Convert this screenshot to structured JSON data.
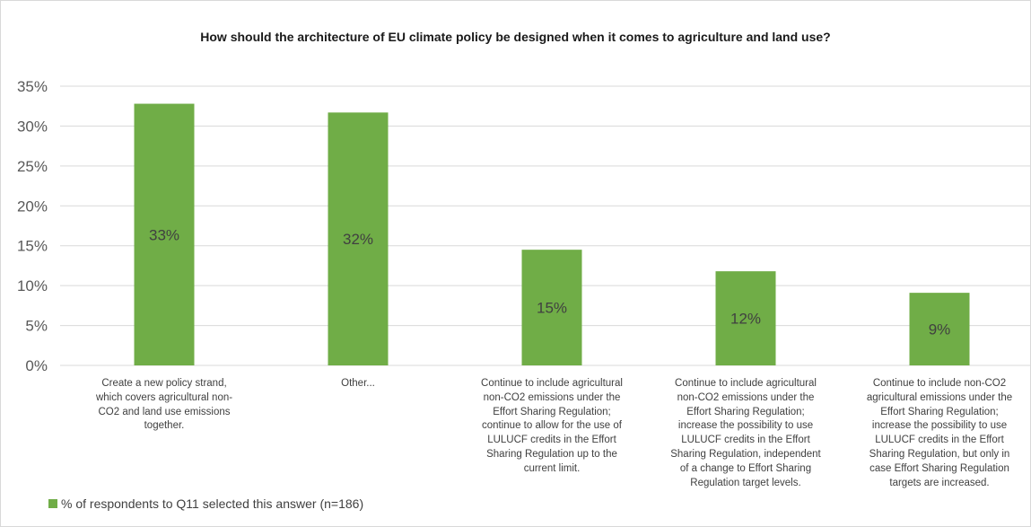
{
  "chart_data": {
    "type": "bar",
    "title": "How should the architecture of EU climate policy be designed when it comes to agriculture and land use?",
    "categories": [
      "Create a new policy strand, which covers agricultural non-CO2 and land use emissions together.",
      "Other...",
      "Continue to include agricultural non-CO2 emissions under the Effort Sharing Regulation; continue to allow for the use of LULUCF credits in the Effort Sharing Regulation up to the current limit.",
      "Continue to include agricultural non-CO2 emissions under the Effort Sharing Regulation; increase the possibility to use LULUCF credits in the Effort Sharing Regulation, independent of a change to Effort Sharing Regulation target levels.",
      "Continue to include non-CO2 agricultural emissions under the Effort Sharing Regulation; increase the possibility to use LULUCF credits in the Effort Sharing Regulation, but only in case Effort Sharing Regulation targets are increased."
    ],
    "category_lines": [
      [
        "Create a new policy strand,",
        "which covers agricultural non-",
        "CO2 and land use emissions",
        "together."
      ],
      [
        "Other..."
      ],
      [
        "Continue to include agricultural",
        "non-CO2 emissions under the",
        "Effort Sharing Regulation;",
        "continue to allow for the use of",
        "LULUCF credits in the Effort",
        "Sharing Regulation up to the",
        "current limit."
      ],
      [
        "Continue to include agricultural",
        "non-CO2 emissions under the",
        "Effort Sharing Regulation;",
        "increase the possibility to use",
        "LULUCF credits in the Effort",
        "Sharing Regulation, independent",
        "of a change to Effort Sharing",
        "Regulation target levels."
      ],
      [
        "Continue to include non-CO2",
        "agricultural emissions under the",
        "Effort Sharing Regulation;",
        "increase the possibility to use",
        "LULUCF credits in the Effort",
        "Sharing Regulation, but only in",
        "case Effort Sharing Regulation",
        "targets are increased."
      ]
    ],
    "series": [
      {
        "name": "% of respondents to Q11 selected this answer (n=186)",
        "values": [
          32.8,
          31.7,
          14.5,
          11.8,
          9.1
        ],
        "data_labels": [
          "33%",
          "32%",
          "15%",
          "12%",
          "9%"
        ],
        "color": "#70ad47"
      }
    ],
    "ylim": [
      0,
      35
    ],
    "yticks": [
      0,
      5,
      10,
      15,
      20,
      25,
      30,
      35
    ],
    "ytick_labels": [
      "0%",
      "5%",
      "10%",
      "15%",
      "20%",
      "25%",
      "30%",
      "35%"
    ],
    "xlabel": "",
    "ylabel": "",
    "grid": true,
    "legend_position": "bottom-left"
  }
}
